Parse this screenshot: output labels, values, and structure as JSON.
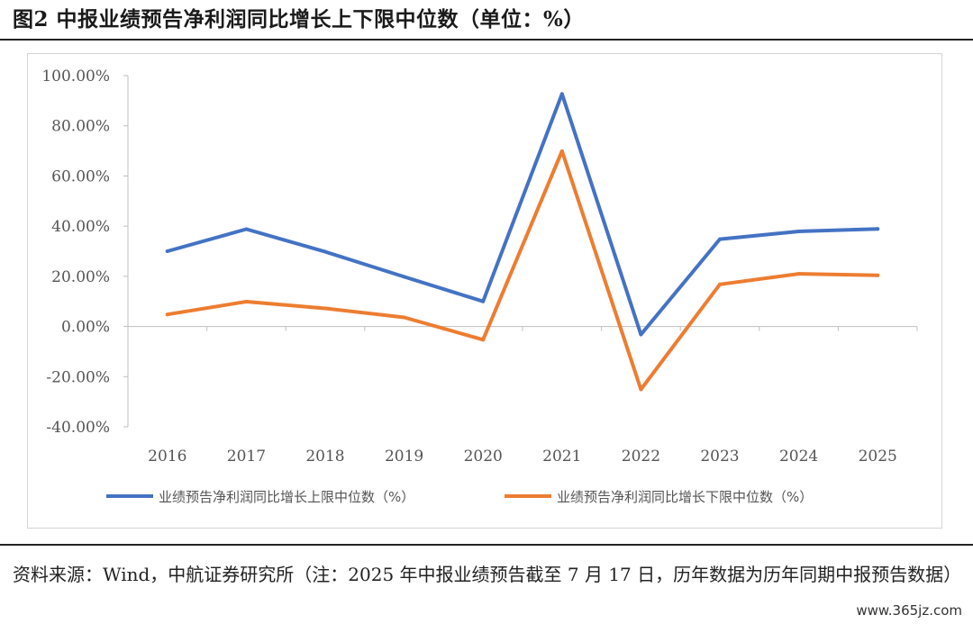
{
  "figure": {
    "title": "图2 中报业绩预告净利润同比增长上下限中位数（单位：%）",
    "source": "资料来源：Wind，中航证券研究所（注：2025 年中报业绩预告截至 7 月 17 日，历年数据为历年同期中报预告数据）",
    "watermark": "www.365jz.com"
  },
  "chart_data": {
    "type": "line",
    "title": "",
    "xlabel": "",
    "ylabel": "",
    "categories": [
      "2016",
      "2017",
      "2018",
      "2019",
      "2020",
      "2021",
      "2022",
      "2023",
      "2024",
      "2025"
    ],
    "yticks": [
      "100.00%",
      "80.00%",
      "60.00%",
      "40.00%",
      "20.00%",
      "0.00%",
      "-20.00%",
      "-40.00%"
    ],
    "ylim": [
      -40,
      100
    ],
    "grid": false,
    "legend_position": "bottom",
    "series": [
      {
        "name": "业绩预告净利润同比增长上限中位数（%）",
        "color": "#4472c4",
        "values": [
          30.0,
          38.8,
          29.8,
          19.8,
          10.0,
          92.7,
          -3.2,
          34.8,
          37.9,
          38.9
        ]
      },
      {
        "name": "业绩预告净利润同比增长下限中位数（%）",
        "color": "#ed7d31",
        "values": [
          4.8,
          9.9,
          7.2,
          3.6,
          -5.3,
          69.9,
          -25.1,
          16.8,
          21.0,
          20.4
        ]
      }
    ]
  }
}
